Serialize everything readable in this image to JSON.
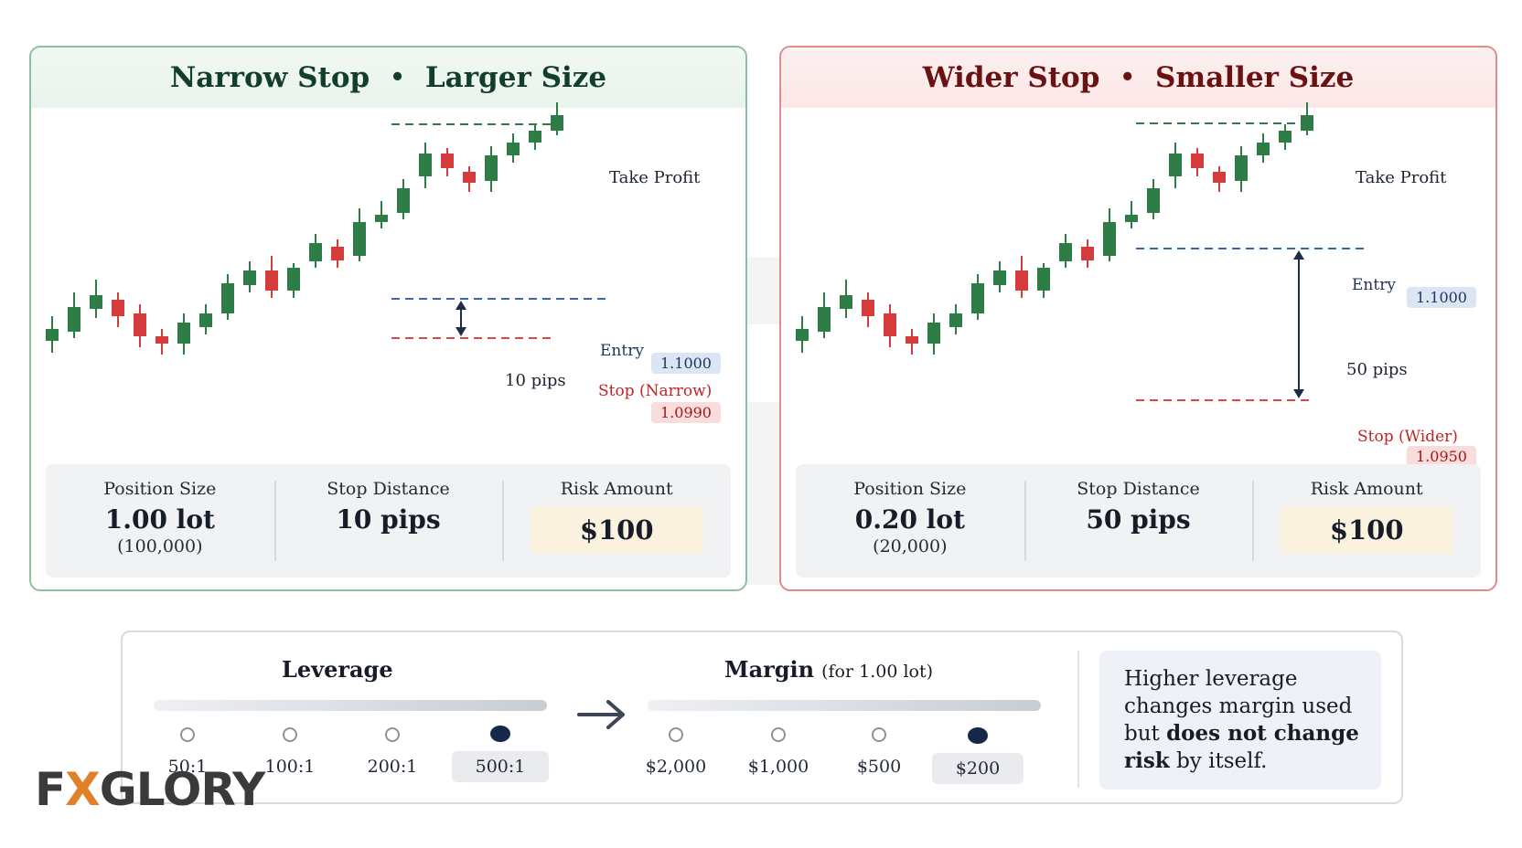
{
  "panels": {
    "narrow": {
      "title_a": "Narrow Stop",
      "title_sep": "•",
      "title_b": "Larger Size",
      "take_profit_label": "Take Profit",
      "entry_label": "Entry",
      "entry_price": "1.1000",
      "pips_label": "10 pips",
      "stop_label": "Stop (Narrow)",
      "stop_price": "1.0990",
      "stats": [
        {
          "heading": "Position Size",
          "value": "1.00 lot",
          "sub": "(100,000)"
        },
        {
          "heading": "Stop Distance",
          "value": "10 pips"
        },
        {
          "heading": "Risk Amount",
          "value": "$100"
        }
      ]
    },
    "wider": {
      "title_a": "Wider Stop",
      "title_sep": "•",
      "title_b": "Smaller Size",
      "take_profit_label": "Take Profit",
      "entry_label": "Entry",
      "entry_price": "1.1000",
      "pips_label": "50 pips",
      "stop_label": "Stop (Wider)",
      "stop_price": "1.0950",
      "stats": [
        {
          "heading": "Position Size",
          "value": "0.20 lot",
          "sub": "(20,000)"
        },
        {
          "heading": "Stop Distance",
          "value": "50 pips"
        },
        {
          "heading": "Risk Amount",
          "value": "$100"
        }
      ]
    }
  },
  "candles": [
    {
      "o": 15,
      "c": 28,
      "h": 42,
      "l": 2
    },
    {
      "o": 25,
      "c": 52,
      "h": 68,
      "l": 18
    },
    {
      "o": 50,
      "c": 65,
      "h": 82,
      "l": 40
    },
    {
      "o": 60,
      "c": 42,
      "h": 68,
      "l": 30
    },
    {
      "o": 45,
      "c": 20,
      "h": 55,
      "l": 8
    },
    {
      "o": 20,
      "c": 12,
      "h": 28,
      "l": 0
    },
    {
      "o": 12,
      "c": 35,
      "h": 45,
      "l": 0
    },
    {
      "o": 30,
      "c": 45,
      "h": 55,
      "l": 22
    },
    {
      "o": 45,
      "c": 78,
      "h": 88,
      "l": 38
    },
    {
      "o": 76,
      "c": 92,
      "h": 102,
      "l": 68
    },
    {
      "o": 92,
      "c": 70,
      "h": 108,
      "l": 62
    },
    {
      "o": 70,
      "c": 95,
      "h": 100,
      "l": 62
    },
    {
      "o": 102,
      "c": 122,
      "h": 132,
      "l": 95
    },
    {
      "o": 118,
      "c": 103,
      "h": 126,
      "l": 95
    },
    {
      "o": 108,
      "c": 145,
      "h": 160,
      "l": 102
    },
    {
      "o": 145,
      "c": 153,
      "h": 168,
      "l": 138
    },
    {
      "o": 155,
      "c": 182,
      "h": 192,
      "l": 148
    },
    {
      "o": 195,
      "c": 220,
      "h": 232,
      "l": 182
    },
    {
      "o": 220,
      "c": 204,
      "h": 226,
      "l": 195
    },
    {
      "o": 200,
      "c": 188,
      "h": 206,
      "l": 178
    },
    {
      "o": 190,
      "c": 218,
      "h": 228,
      "l": 178
    },
    {
      "o": 218,
      "c": 232,
      "h": 242,
      "l": 210
    },
    {
      "o": 232,
      "c": 245,
      "h": 252,
      "l": 224
    },
    {
      "o": 245,
      "c": 262,
      "h": 276,
      "l": 240
    }
  ],
  "bottom": {
    "leverage_title": "Leverage",
    "margin_title": "Margin",
    "margin_note": "(for 1.00 lot)",
    "leverage_options": [
      "50:1",
      "100:1",
      "200:1",
      "500:1"
    ],
    "margin_options": [
      "$2,000",
      "$1,000",
      "$500",
      "$200"
    ],
    "selected_index": 3,
    "note_text_1": "Higher leverage changes margin used but",
    "note_bold_1": "does not change risk",
    "note_text_2": "by itself."
  },
  "brand": {
    "logo_a": "F",
    "logo_x": "X",
    "logo_b": "GLORY"
  },
  "colors": {
    "bull": "#2e7d46",
    "bear": "#d63b3b",
    "entry": "#3866b0",
    "stop": "#d94848",
    "tp": "#2f7a45"
  }
}
